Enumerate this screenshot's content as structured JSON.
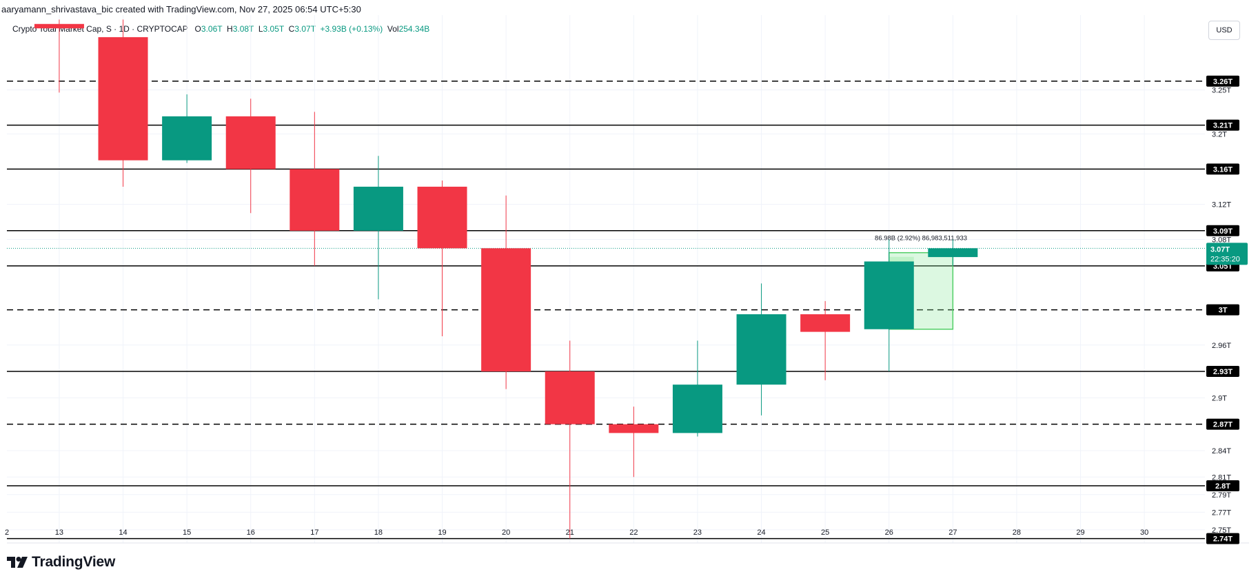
{
  "attribution": "aaryamann_shrivastava_bic created with TradingView.com, Nov 27, 2025 06:54 UTC+5:30",
  "legend": {
    "symbol": "Crypto Total Market Cap, S · 1D · CRYPTOCAP",
    "open_key": "O",
    "open": "3.06T",
    "high_key": "H",
    "high": "3.08T",
    "low_key": "L",
    "low": "3.05T",
    "close_key": "C",
    "close": "3.07T",
    "change": "+3.93B (+0.13%)",
    "vol_key": "Vol",
    "vol": "254.34B"
  },
  "currency": "USD",
  "brand": {
    "name": "TradingView"
  },
  "colors": {
    "up": "#089981",
    "down": "#f23645",
    "highlight": "#8ce99a",
    "line": "#000000"
  },
  "chart_data": {
    "type": "candlestick",
    "x_tick_labels": [
      "2",
      "13",
      "14",
      "15",
      "16",
      "17",
      "18",
      "19",
      "20",
      "21",
      "22",
      "23",
      "24",
      "25",
      "26",
      "27",
      "28",
      "29",
      "30"
    ],
    "candles": [
      {
        "day": "13",
        "open": 3.325,
        "high": 3.33,
        "low": 3.247,
        "close": 3.32
      },
      {
        "day": "14",
        "open": 3.31,
        "high": 3.33,
        "low": 3.14,
        "close": 3.17
      },
      {
        "day": "15",
        "open": 3.17,
        "high": 3.245,
        "low": 3.167,
        "close": 3.22
      },
      {
        "day": "16",
        "open": 3.22,
        "high": 3.24,
        "low": 3.11,
        "close": 3.16
      },
      {
        "day": "17",
        "open": 3.16,
        "high": 3.225,
        "low": 3.05,
        "close": 3.09
      },
      {
        "day": "18",
        "open": 3.09,
        "high": 3.175,
        "low": 3.012,
        "close": 3.14
      },
      {
        "day": "19",
        "open": 3.14,
        "high": 3.147,
        "low": 2.97,
        "close": 3.07
      },
      {
        "day": "20",
        "open": 3.07,
        "high": 3.13,
        "low": 2.91,
        "close": 2.93
      },
      {
        "day": "21",
        "open": 2.93,
        "high": 2.965,
        "low": 2.74,
        "close": 2.87
      },
      {
        "day": "22",
        "open": 2.87,
        "high": 2.89,
        "low": 2.81,
        "close": 2.86
      },
      {
        "day": "23",
        "open": 2.86,
        "high": 2.965,
        "low": 2.856,
        "close": 2.915
      },
      {
        "day": "24",
        "open": 2.915,
        "high": 3.03,
        "low": 2.88,
        "close": 2.995
      },
      {
        "day": "25",
        "open": 2.995,
        "high": 3.01,
        "low": 2.92,
        "close": 2.975
      },
      {
        "day": "26",
        "open": 2.978,
        "high": 3.08,
        "low": 2.93,
        "close": 3.055
      },
      {
        "day": "27",
        "open": 3.06,
        "high": 3.08,
        "low": 3.05,
        "close": 3.07
      }
    ],
    "price_ticks": [
      "3.25T",
      "3.2T",
      "3.12T",
      "3.08T",
      "2.96T",
      "2.9T",
      "2.84T",
      "2.81T",
      "2.79T",
      "2.77T",
      "2.75T"
    ],
    "price_tick_values": [
      3.25,
      3.2,
      3.12,
      3.08,
      2.96,
      2.9,
      2.84,
      2.81,
      2.79,
      2.77,
      2.75
    ],
    "horizontal_levels": [
      {
        "label": "3.26T",
        "value": 3.26,
        "style": "dashed"
      },
      {
        "label": "3.21T",
        "value": 3.21,
        "style": "solid"
      },
      {
        "label": "3.16T",
        "value": 3.16,
        "style": "solid"
      },
      {
        "label": "3.09T",
        "value": 3.09,
        "style": "solid"
      },
      {
        "label": "3.05T",
        "value": 3.05,
        "style": "solid"
      },
      {
        "label": "3T",
        "value": 3.0,
        "style": "dashed"
      },
      {
        "label": "2.93T",
        "value": 2.93,
        "style": "solid"
      },
      {
        "label": "2.87T",
        "value": 2.87,
        "style": "dashed"
      },
      {
        "label": "2.8T",
        "value": 2.8,
        "style": "solid"
      },
      {
        "label": "2.74T",
        "value": 2.74,
        "style": "solid"
      }
    ],
    "current_price": {
      "label": "3.07T",
      "countdown": "22:35:20",
      "value": 3.07
    },
    "measure_box": {
      "from_day": "26",
      "to_day": "27",
      "low": 2.978,
      "high": 3.065,
      "label": "86.98B (2.92%) 86,983,511,933"
    },
    "ylim": [
      2.735,
      3.335
    ]
  }
}
